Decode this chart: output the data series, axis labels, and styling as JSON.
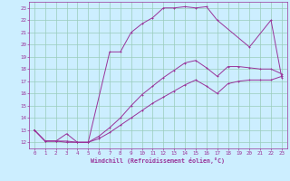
{
  "xlabel": "Windchill (Refroidissement éolien,°C)",
  "bg_color": "#cceeff",
  "grid_color": "#99ccbb",
  "line_color": "#993399",
  "spine_color": "#993399",
  "xlim": [
    -0.5,
    23.5
  ],
  "ylim": [
    11.5,
    23.5
  ],
  "xticks": [
    0,
    1,
    2,
    3,
    4,
    5,
    6,
    7,
    8,
    9,
    10,
    11,
    12,
    13,
    14,
    15,
    16,
    17,
    18,
    19,
    20,
    21,
    22,
    23
  ],
  "yticks": [
    12,
    13,
    14,
    15,
    16,
    17,
    18,
    19,
    20,
    21,
    22,
    23
  ],
  "curve1_x": [
    0,
    1,
    2,
    3,
    4,
    5,
    7,
    8,
    9,
    10,
    11,
    12,
    13,
    14,
    15,
    16,
    17,
    20,
    22,
    23
  ],
  "curve1_y": [
    13.0,
    12.1,
    12.1,
    12.1,
    12.0,
    12.0,
    19.4,
    19.4,
    21.0,
    21.7,
    22.2,
    23.0,
    23.0,
    23.1,
    23.0,
    23.1,
    22.0,
    19.8,
    22.0,
    17.3
  ],
  "curve2_x": [
    0,
    1,
    2,
    3,
    4,
    5,
    6,
    7,
    8,
    9,
    10,
    11,
    12,
    13,
    14,
    15,
    16,
    17,
    18,
    19,
    20,
    21,
    22,
    23
  ],
  "curve2_y": [
    13.0,
    12.1,
    12.1,
    12.7,
    12.0,
    12.0,
    12.5,
    13.2,
    14.0,
    15.0,
    15.9,
    16.6,
    17.3,
    17.9,
    18.5,
    18.7,
    18.1,
    17.4,
    18.2,
    18.2,
    18.1,
    18.0,
    18.0,
    17.6
  ],
  "curve3_x": [
    0,
    1,
    2,
    3,
    4,
    5,
    6,
    7,
    8,
    9,
    10,
    11,
    12,
    13,
    14,
    15,
    16,
    17,
    18,
    19,
    20,
    21,
    22,
    23
  ],
  "curve3_y": [
    13.0,
    12.1,
    12.1,
    12.0,
    12.0,
    12.0,
    12.3,
    12.8,
    13.4,
    14.0,
    14.6,
    15.2,
    15.7,
    16.2,
    16.7,
    17.1,
    16.6,
    16.0,
    16.8,
    17.0,
    17.1,
    17.1,
    17.1,
    17.4
  ]
}
